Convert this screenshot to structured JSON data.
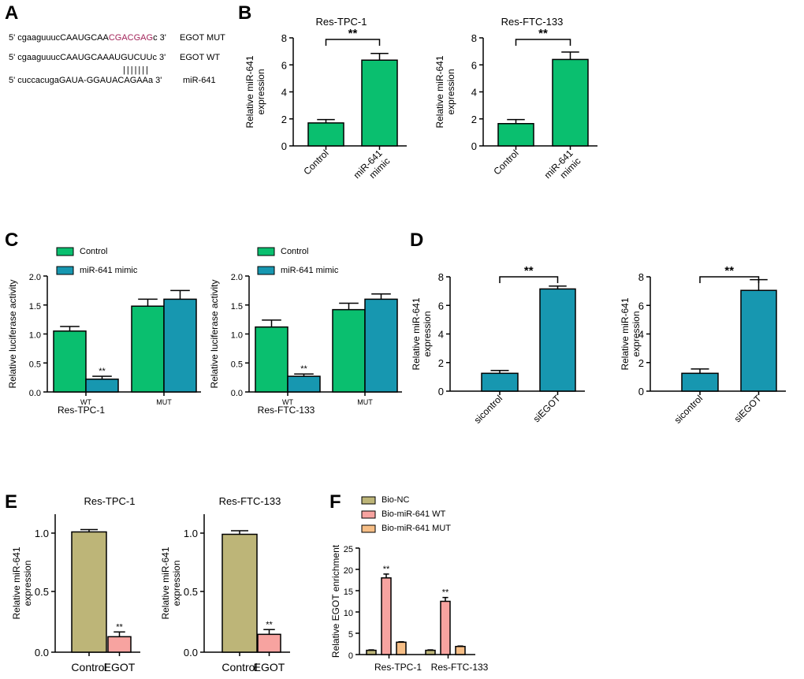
{
  "panels": {
    "A": {
      "letter": "A",
      "rows": [
        {
          "prefix": "5' cgaaguuucCAAUGCAA",
          "highlight": "CGACGAG",
          "suffix": "c 3'",
          "label": "EGOT MUT"
        },
        {
          "prefix": "5' cgaaguuucCAAUGCAAAUGUCUUc 3'",
          "highlight": "",
          "suffix": "",
          "label": "EGOT WT"
        },
        {
          "prefix": "5' cuccacugaGAUA-GGAUACAGAAa 3'",
          "highlight": "",
          "suffix": "",
          "label": "miR-641"
        }
      ],
      "pairing_bars": "|||||||"
    },
    "B": {
      "letter": "B"
    },
    "C": {
      "letter": "C"
    },
    "D": {
      "letter": "D"
    },
    "E": {
      "letter": "E"
    },
    "F": {
      "letter": "F"
    }
  },
  "colors": {
    "green": "#0ABF6F",
    "blue": "#1797B0",
    "olive": "#BDB578",
    "pink": "#F7A3A0",
    "orange": "#F6BE86",
    "highlight": "#A3245A"
  },
  "chart_data": [
    {
      "id": "B1",
      "panel": "B",
      "type": "bar",
      "title": "Res-TPC-1",
      "ylabel": "Relative miR-641\nexpression",
      "categories": [
        "Control",
        "miR-641\nmimic"
      ],
      "values": [
        1.7,
        6.35
      ],
      "errors": [
        0.25,
        0.5
      ],
      "ylim": [
        0,
        8
      ],
      "yticks": [
        "0",
        "2",
        "4",
        "6",
        "8"
      ],
      "bar_colors": [
        "green",
        "green"
      ],
      "significance": "**"
    },
    {
      "id": "B2",
      "panel": "B",
      "type": "bar",
      "title": "Res-FTC-133",
      "ylabel": "Relative miR-641\nexpression",
      "categories": [
        "Control",
        "miR-641\nmimic"
      ],
      "values": [
        1.65,
        6.4
      ],
      "errors": [
        0.3,
        0.55
      ],
      "ylim": [
        0,
        8
      ],
      "yticks": [
        "0",
        "2",
        "4",
        "6",
        "8"
      ],
      "bar_colors": [
        "green",
        "green"
      ],
      "significance": "**"
    },
    {
      "id": "C1",
      "panel": "C",
      "type": "bar",
      "xlabel": "Res-TPC-1",
      "ylabel": "Relative luciferase activity",
      "categories": [
        "WT",
        "MUT"
      ],
      "series": [
        {
          "name": "Control",
          "color": "green",
          "values": [
            1.05,
            1.48
          ],
          "errors": [
            0.08,
            0.12
          ]
        },
        {
          "name": "miR-641 mimic",
          "color": "blue",
          "values": [
            0.22,
            1.6
          ],
          "errors": [
            0.05,
            0.15
          ]
        }
      ],
      "ylim": [
        0,
        2.0
      ],
      "yticks": [
        "0.0",
        "0.5",
        "1.0",
        "1.5",
        "2.0"
      ],
      "significance": [
        {
          "category": 0,
          "series": 1,
          "label": "**"
        }
      ]
    },
    {
      "id": "C2",
      "panel": "C",
      "type": "bar",
      "xlabel": "Res-FTC-133",
      "ylabel": "Relative luciferase activity",
      "categories": [
        "WT",
        "MUT"
      ],
      "series": [
        {
          "name": "Control",
          "color": "green",
          "values": [
            1.12,
            1.42
          ],
          "errors": [
            0.12,
            0.11
          ]
        },
        {
          "name": "miR-641 mimic",
          "color": "blue",
          "values": [
            0.27,
            1.6
          ],
          "errors": [
            0.04,
            0.09
          ]
        }
      ],
      "ylim": [
        0,
        2.0
      ],
      "yticks": [
        "0.0",
        "0.5",
        "1.0",
        "1.5",
        "2.0"
      ],
      "significance": [
        {
          "category": 0,
          "series": 1,
          "label": "**"
        }
      ]
    },
    {
      "id": "D1",
      "panel": "D",
      "type": "bar",
      "ylabel": "Relative miR-641\nexpression",
      "categories": [
        "sicontrol",
        "siEGOT"
      ],
      "values": [
        1.25,
        7.15
      ],
      "errors": [
        0.2,
        0.2
      ],
      "ylim": [
        0,
        8
      ],
      "yticks": [
        "0",
        "2",
        "4",
        "6",
        "8"
      ],
      "bar_colors": [
        "blue",
        "blue"
      ],
      "significance": "**"
    },
    {
      "id": "D2",
      "panel": "D",
      "type": "bar",
      "ylabel": "Relative miR-641\nexpression",
      "categories": [
        "sicontrol",
        "siEGOT"
      ],
      "values": [
        1.25,
        7.05
      ],
      "errors": [
        0.3,
        0.75
      ],
      "ylim": [
        0,
        8
      ],
      "yticks": [
        "0",
        "2",
        "4",
        "6",
        "8"
      ],
      "bar_colors": [
        "blue",
        "blue"
      ],
      "significance": "**"
    },
    {
      "id": "E1",
      "panel": "E",
      "type": "bar",
      "title": "Res-TPC-1",
      "ylabel": "Relative miR-641\nexpression",
      "categories": [
        "Control",
        "EGOT"
      ],
      "values": [
        1.01,
        0.13
      ],
      "errors": [
        0.02,
        0.04
      ],
      "ylim": [
        0,
        1.2
      ],
      "yticks": [
        "0.0",
        "0.5",
        "1.0"
      ],
      "bar_colors": [
        "olive",
        "pink"
      ],
      "significance_bar": [
        {
          "index": 1,
          "label": "**"
        }
      ]
    },
    {
      "id": "E2",
      "panel": "E",
      "type": "bar",
      "title": "Res-FTC-133",
      "ylabel": "Relative miR-641\nexpression",
      "categories": [
        "Control",
        "EGOT"
      ],
      "values": [
        0.99,
        0.15
      ],
      "errors": [
        0.03,
        0.04
      ],
      "ylim": [
        0,
        1.2
      ],
      "yticks": [
        "0.0",
        "0.5",
        "1.0"
      ],
      "bar_colors": [
        "olive",
        "pink"
      ],
      "significance_bar": [
        {
          "index": 1,
          "label": "**"
        }
      ]
    },
    {
      "id": "F",
      "panel": "F",
      "type": "bar",
      "ylabel": "Relative EGOT  enrichment",
      "categories": [
        "Res-TPC-1",
        "Res-FTC-133"
      ],
      "series": [
        {
          "name": "Bio-NC",
          "color": "olive",
          "values": [
            1.0,
            1.0
          ],
          "errors": [
            0.1,
            0.1
          ]
        },
        {
          "name": "Bio-miR-641 WT",
          "color": "pink",
          "values": [
            18.0,
            12.5
          ],
          "errors": [
            0.9,
            0.9
          ]
        },
        {
          "name": "Bio-miR-641 MUT",
          "color": "orange",
          "values": [
            2.9,
            1.9
          ],
          "errors": [
            0.1,
            0.1
          ]
        }
      ],
      "ylim": [
        0,
        25
      ],
      "yticks": [
        "0",
        "5",
        "10",
        "15",
        "20",
        "25"
      ],
      "significance": [
        {
          "category": 0,
          "series": 1,
          "label": "**"
        },
        {
          "category": 1,
          "series": 1,
          "label": "**"
        }
      ]
    }
  ]
}
